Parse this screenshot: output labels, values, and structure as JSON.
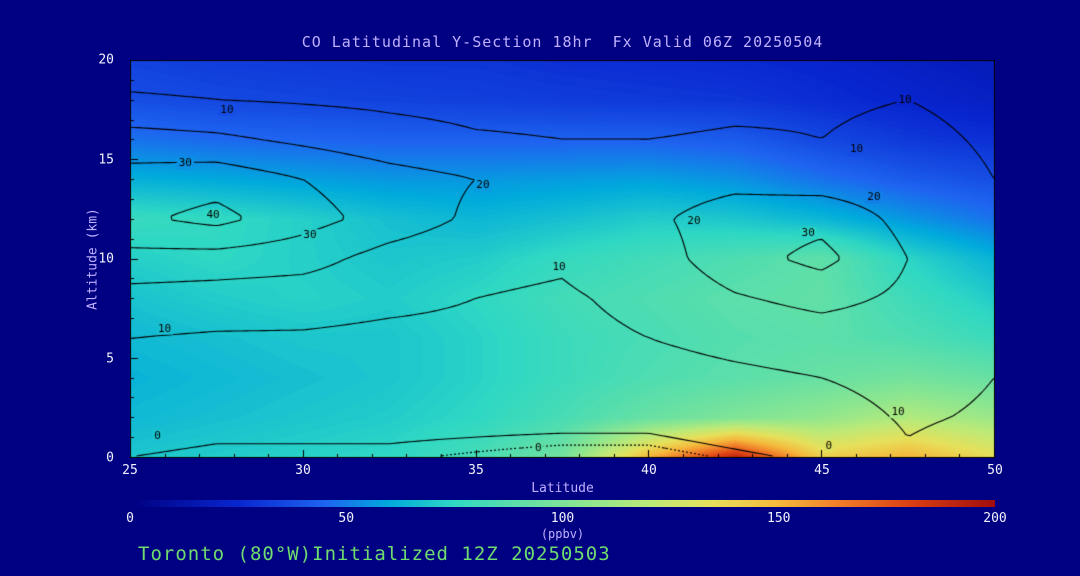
{
  "title": "CO Latitudinal Y-Section 18hr  Fx Valid 06Z 20250504",
  "footer": "Toronto (80°W)Initialized 12Z 20250503",
  "axes": {
    "x_label": "Latitude",
    "y_label": "Altitude (km)",
    "x_ticks": [
      25,
      30,
      35,
      40,
      45,
      50
    ],
    "y_ticks": [
      0,
      5,
      10,
      15,
      20
    ],
    "x_range": [
      25,
      50
    ],
    "y_range": [
      0,
      20
    ]
  },
  "colorbar": {
    "ticks": [
      0,
      50,
      100,
      150,
      200
    ],
    "min": 0,
    "max": 200,
    "units": "(ppbv)"
  },
  "colors": {
    "background": "#000082",
    "title_text": "#c0b0ff",
    "tick_text": "#f2f2ff",
    "footer_text": "#6fdc6f",
    "contour_line": "#000000"
  },
  "chart_data": {
    "type": "heatmap",
    "title": "CO Latitudinal Y-Section 18hr  Fx Valid 06Z 20250504",
    "xlabel": "Latitude",
    "ylabel": "Altitude (km)",
    "x": [
      25,
      27.5,
      30,
      32.5,
      35,
      37.5,
      40,
      42.5,
      45,
      47.5,
      50
    ],
    "y": [
      0,
      2,
      4,
      6,
      8,
      10,
      12,
      14,
      16,
      18,
      20
    ],
    "values_ppbv": [
      [
        69,
        71,
        73,
        75,
        82,
        97,
        152,
        192,
        142,
        152,
        136
      ],
      [
        65,
        67,
        69,
        71,
        75,
        83,
        93,
        101,
        107,
        117,
        110
      ],
      [
        63,
        65,
        67,
        69,
        73,
        79,
        85,
        89,
        93,
        97,
        93
      ],
      [
        65,
        67,
        69,
        69,
        73,
        79,
        83,
        87,
        89,
        85,
        79
      ],
      [
        68,
        71,
        73,
        71,
        75,
        81,
        85,
        89,
        91,
        80,
        71
      ],
      [
        72,
        75,
        72,
        69,
        71,
        77,
        81,
        85,
        90,
        74,
        63
      ],
      [
        78,
        76,
        72,
        67,
        64,
        67,
        71,
        69,
        64,
        56,
        48
      ],
      [
        62,
        60,
        58,
        56,
        56,
        57,
        58,
        55,
        48,
        42,
        38
      ],
      [
        48,
        46,
        45,
        44,
        44,
        44,
        44,
        42,
        36,
        31,
        28
      ],
      [
        38,
        36,
        35,
        34,
        33,
        32,
        31,
        30,
        27,
        24,
        21
      ],
      [
        34,
        32,
        31,
        30,
        30,
        28,
        27,
        26,
        24,
        21,
        18
      ]
    ],
    "contour_levels": [
      0,
      10,
      20,
      30,
      40
    ],
    "contour_dotted_level": -1.5,
    "contour_values": [
      [
        0,
        -1,
        -1,
        -1,
        -2,
        -3,
        -3,
        -1,
        1,
        9,
        6
      ],
      [
        3,
        2,
        2,
        2,
        2,
        2,
        2,
        4,
        6,
        11,
        9
      ],
      [
        7,
        6,
        6,
        5,
        5,
        5,
        6,
        8,
        10,
        13,
        10
      ],
      [
        10,
        9,
        9,
        8,
        8,
        8,
        10,
        13,
        15,
        15,
        12
      ],
      [
        16,
        15,
        14,
        12,
        10,
        9,
        12,
        19,
        23,
        18,
        14
      ],
      [
        27,
        26,
        24,
        16,
        12,
        11,
        15,
        26,
        33,
        20,
        14
      ],
      [
        38,
        43,
        34,
        26,
        18,
        15,
        18,
        25,
        27,
        17,
        12
      ],
      [
        34,
        36,
        30,
        24,
        20,
        16,
        15,
        17,
        15,
        14,
        10
      ],
      [
        24,
        22,
        18,
        14,
        11,
        10,
        10,
        11,
        10,
        12,
        9
      ],
      [
        11,
        10,
        9,
        8,
        7,
        7,
        7,
        8,
        9,
        10,
        8
      ],
      [
        6,
        6,
        5,
        5,
        4,
        4,
        4,
        4,
        5,
        5,
        4
      ]
    ],
    "contour_labels": [
      [
        "10",
        27.8,
        17.5
      ],
      [
        "30",
        26.6,
        14.8
      ],
      [
        "40",
        27.4,
        12.2
      ],
      [
        "30",
        30.2,
        11.2
      ],
      [
        "20",
        35.2,
        13.7
      ],
      [
        "10",
        37.4,
        9.6
      ],
      [
        "10",
        26.0,
        6.5
      ],
      [
        "0",
        25.8,
        1.1
      ],
      [
        "20",
        41.3,
        11.9
      ],
      [
        "30",
        44.6,
        11.3
      ],
      [
        "20",
        46.5,
        13.1
      ],
      [
        "10",
        47.4,
        18.0
      ],
      [
        "10",
        46.0,
        15.5
      ],
      [
        "0",
        45.2,
        0.6
      ],
      [
        "10",
        47.2,
        2.3
      ],
      [
        "0",
        36.8,
        0.5
      ]
    ],
    "colormap_stops": [
      [
        0,
        "#000080"
      ],
      [
        25,
        "#0826cf"
      ],
      [
        45,
        "#1e64f0"
      ],
      [
        60,
        "#00aadc"
      ],
      [
        75,
        "#2fd8c3"
      ],
      [
        90,
        "#5fdfa8"
      ],
      [
        105,
        "#8ce690"
      ],
      [
        120,
        "#bcea78"
      ],
      [
        135,
        "#e6e05a"
      ],
      [
        150,
        "#f5b93c"
      ],
      [
        165,
        "#f07a28"
      ],
      [
        180,
        "#dc4014"
      ],
      [
        200,
        "#a00d0d"
      ]
    ],
    "x_range": [
      25,
      50
    ],
    "y_range": [
      0,
      20
    ],
    "grid": false,
    "legend_position": "bottom-colorbar"
  }
}
